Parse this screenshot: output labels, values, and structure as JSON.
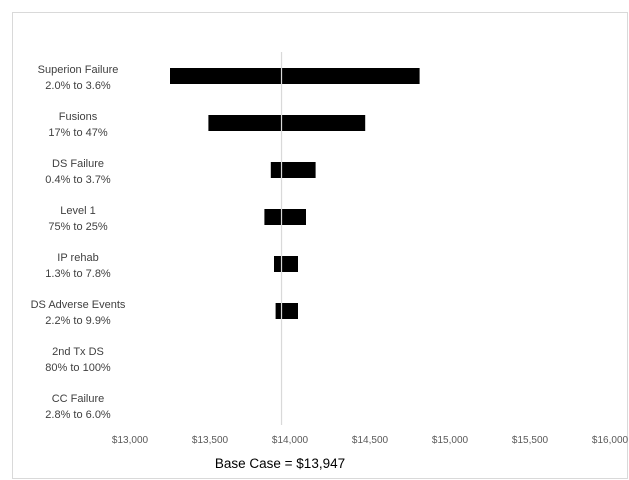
{
  "chart_data": {
    "type": "tornado",
    "base_case_value": 13947,
    "base_case_label": "Base Case = $13,947",
    "xlim": [
      13000,
      16000
    ],
    "x_ticks": [
      {
        "value": 13000,
        "label": "$13,000"
      },
      {
        "value": 13500,
        "label": "$13,500"
      },
      {
        "value": 14000,
        "label": "$14,000"
      },
      {
        "value": 14500,
        "label": "$14,500"
      },
      {
        "value": 15000,
        "label": "$15,000"
      },
      {
        "value": 15500,
        "label": "$15,500"
      },
      {
        "value": 16000,
        "label": "$16,000"
      }
    ],
    "bar_color": "#000000",
    "baseline_color": "#d9d9d9",
    "bars": [
      {
        "name": "Superion Failure",
        "range_label": "2.0% to 3.6%",
        "low": 13250,
        "high": 14810
      },
      {
        "name": "Fusions",
        "range_label": "17% to 47%",
        "low": 13490,
        "high": 14470
      },
      {
        "name": "DS Failure",
        "range_label": "0.4% to 3.7%",
        "low": 13880,
        "high": 14160
      },
      {
        "name": "Level 1",
        "range_label": "75% to 25%",
        "low": 13840,
        "high": 14100
      },
      {
        "name": "IP rehab",
        "range_label": "1.3% to 7.8%",
        "low": 13900,
        "high": 14050
      },
      {
        "name": "DS Adverse Events",
        "range_label": "2.2% to 9.9%",
        "low": 13910,
        "high": 14050
      },
      {
        "name": "2nd Tx DS",
        "range_label": "80% to 100%",
        "low": 13947,
        "high": 13947
      },
      {
        "name": "CC Failure",
        "range_label": "2.8% to 6.0%",
        "low": 13947,
        "high": 13947
      }
    ]
  }
}
